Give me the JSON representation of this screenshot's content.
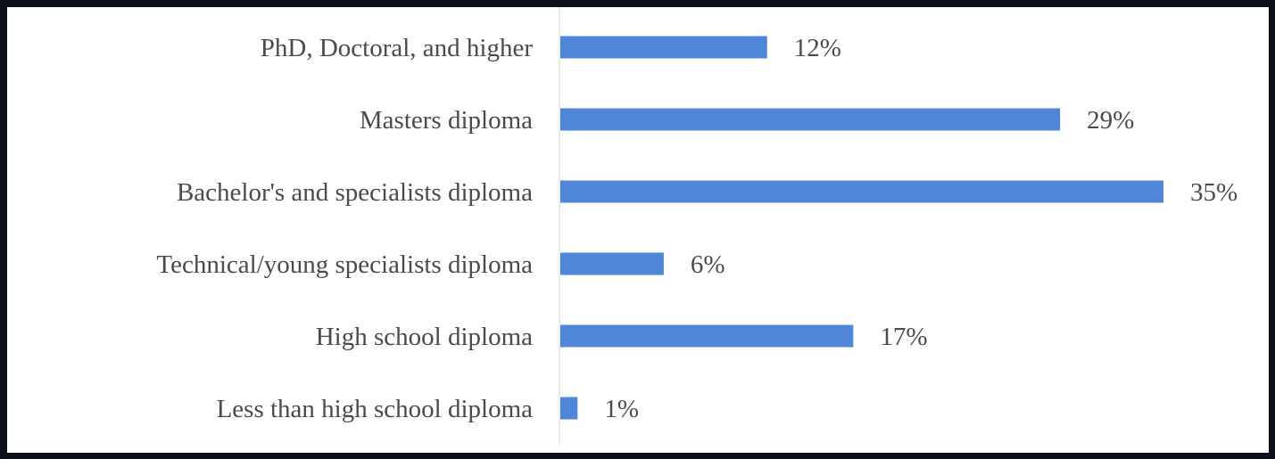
{
  "chart_data": {
    "type": "bar",
    "orientation": "horizontal",
    "categories": [
      "PhD, Doctoral, and higher",
      "Masters diploma",
      "Bachelor's and specialists diploma",
      "Technical/young specialists diploma",
      "High school diploma",
      "Less than high school diploma"
    ],
    "values": [
      12,
      29,
      35,
      6,
      17,
      1
    ],
    "value_labels": [
      "12%",
      "29%",
      "35%",
      "6%",
      "17%",
      "1%"
    ],
    "unit": "%",
    "xlim": [
      0,
      35
    ],
    "grid": false,
    "legend": "none",
    "colors": {
      "bar": "#4f86d8",
      "axis": "#d9d9d9",
      "text": "#4a4a4a",
      "frame": "#0b0f1a",
      "background": "#ffffff"
    }
  }
}
